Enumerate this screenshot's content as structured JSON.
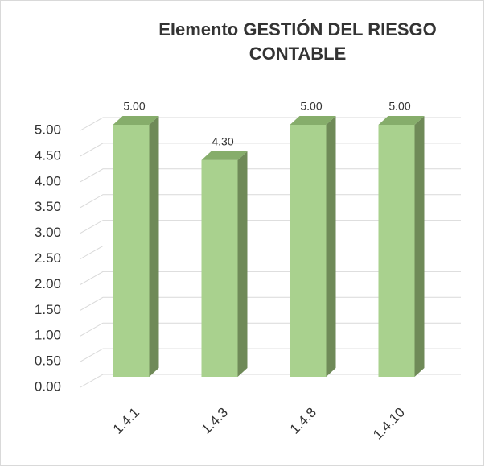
{
  "chart_data": {
    "type": "bar3d",
    "title": "Elemento GESTIÓN DEL RIESGO CONTABLE",
    "categories": [
      "1.4.1",
      "1.4.3",
      "1.4.8",
      "1.4.10"
    ],
    "values": [
      5.0,
      4.3,
      5.0,
      5.0
    ],
    "value_labels": [
      "5.00",
      "4.30",
      "5.00",
      "5.00"
    ],
    "color": "#a9d18e",
    "ylim": [
      0,
      5
    ],
    "yticks": [
      {
        "value": 0,
        "label": "0.00"
      },
      {
        "value": 0.5,
        "label": "0.50"
      },
      {
        "value": 1,
        "label": "1.00"
      },
      {
        "value": 1.5,
        "label": "1.50"
      },
      {
        "value": 2,
        "label": "2.00"
      },
      {
        "value": 2.5,
        "label": "2.50"
      },
      {
        "value": 3,
        "label": "3.00"
      },
      {
        "value": 3.5,
        "label": "3.50"
      },
      {
        "value": 4,
        "label": "4.00"
      },
      {
        "value": 4.5,
        "label": "4.50"
      },
      {
        "value": 5,
        "label": "5.00"
      }
    ],
    "grid": true
  }
}
